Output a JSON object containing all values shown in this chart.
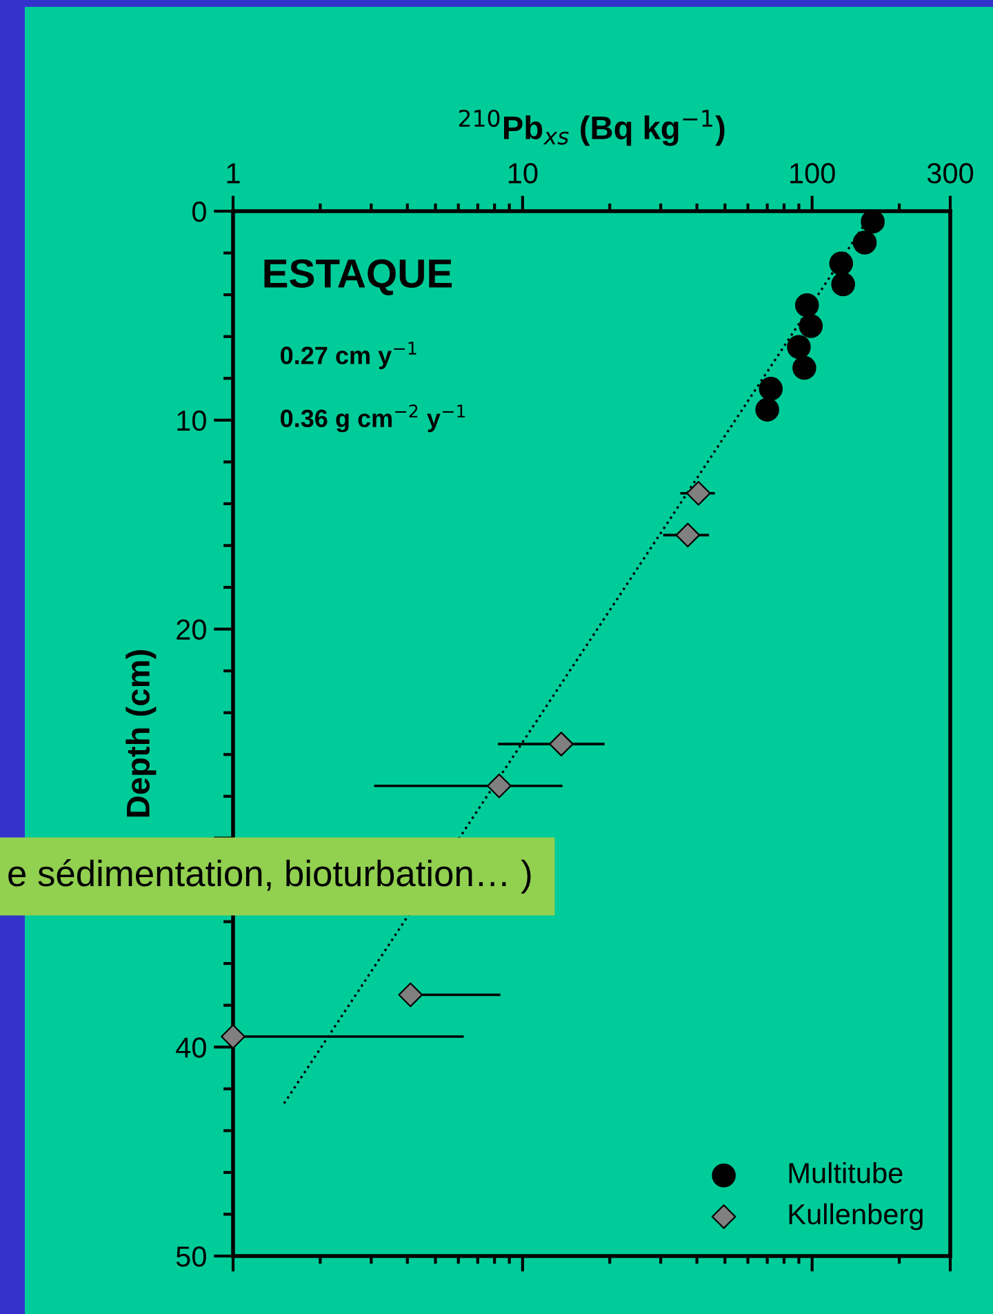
{
  "chart_data": {
    "type": "scatter",
    "xlabel": "$^{210}$Pb$_{xs}$ (Bq kg$^{−1}$)",
    "ylabel": "Depth (cm)",
    "log": "x",
    "xlim": [
      1,
      300
    ],
    "xticks": [
      1,
      10,
      100,
      300
    ],
    "ylim": [
      50,
      0
    ],
    "yticks": [
      0,
      10,
      20,
      {
        "value": 30,
        "label": null
      },
      40,
      50
    ],
    "grid": false,
    "legend": "bottom right",
    "series": [
      {
        "name": "Multitube",
        "marker": "circle",
        "color": "#000000",
        "x": [
          162,
          152,
          126,
          128,
          96,
          99,
          90,
          94,
          72,
          70
        ],
        "values": [
          0.5,
          1.5,
          2.5,
          3.5,
          4.5,
          5.5,
          6.5,
          7.5,
          8.5,
          9.5
        ]
      },
      {
        "name": "Kullenberg",
        "marker": "diamond",
        "color": "#808080",
        "x": [
          40.5,
          37.2,
          13.6,
          8.3,
          4.1,
          1.0
        ],
        "values": [
          13.5,
          15.5,
          25.5,
          27.5,
          37.5,
          39.5
        ],
        "xerrors": [
          [
            35.4,
            45.7
          ],
          [
            30.9,
            43.6
          ],
          [
            8.3,
            19.0
          ],
          [
            3.1,
            13.6
          ],
          [
            4.1,
            8.3
          ],
          [
            1.0,
            6.2
          ]
        ]
      },
      {
        "type": "line",
        "line_style": "dotted",
        "color": "#000000",
        "x": [
          1.5,
          154
        ],
        "values": [
          42.7,
          0.5
        ]
      }
    ],
    "annotations": [
      "ESTAQUE",
      "0.27 cm y$^{−1}$",
      "0.36 g cm$^{−2}$ y$^{−1}$",
      "e sédimentation, bioturbation… )"
    ]
  }
}
